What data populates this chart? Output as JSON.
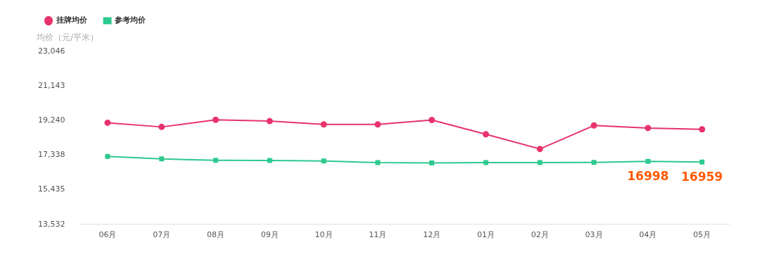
{
  "chart_data": {
    "type": "line",
    "ylabel": "均价（元/平米）",
    "categories": [
      "06月",
      "07月",
      "08月",
      "09月",
      "10月",
      "11月",
      "12月",
      "01月",
      "02月",
      "03月",
      "04月",
      "05月"
    ],
    "series": [
      {
        "name": "挂牌均价",
        "color": "#e8336d",
        "marker": "circle",
        "values": [
          19120,
          18890,
          19280,
          19210,
          19030,
          19030,
          19270,
          18490,
          17680,
          18970,
          18830,
          18760
        ]
      },
      {
        "name": "参考均价",
        "color": "#2dc98f",
        "marker": "square",
        "values": [
          17270,
          17130,
          17060,
          17050,
          17020,
          16930,
          16910,
          16930,
          16930,
          16940,
          16998,
          16959
        ],
        "value_labels": [
          null,
          null,
          null,
          null,
          null,
          null,
          null,
          null,
          null,
          null,
          "16998",
          "16959"
        ]
      }
    ],
    "ylim": [
      13532,
      23046
    ],
    "yticks": [
      {
        "value": 13532,
        "label": "13,532"
      },
      {
        "value": 15435,
        "label": "15,435"
      },
      {
        "value": 17338,
        "label": "17,338"
      },
      {
        "value": 19240,
        "label": "19,240"
      },
      {
        "value": 21143,
        "label": "21,143"
      },
      {
        "value": 23046,
        "label": "23,046"
      }
    ],
    "grid": false,
    "legend": "top left",
    "line_style": "solid"
  }
}
